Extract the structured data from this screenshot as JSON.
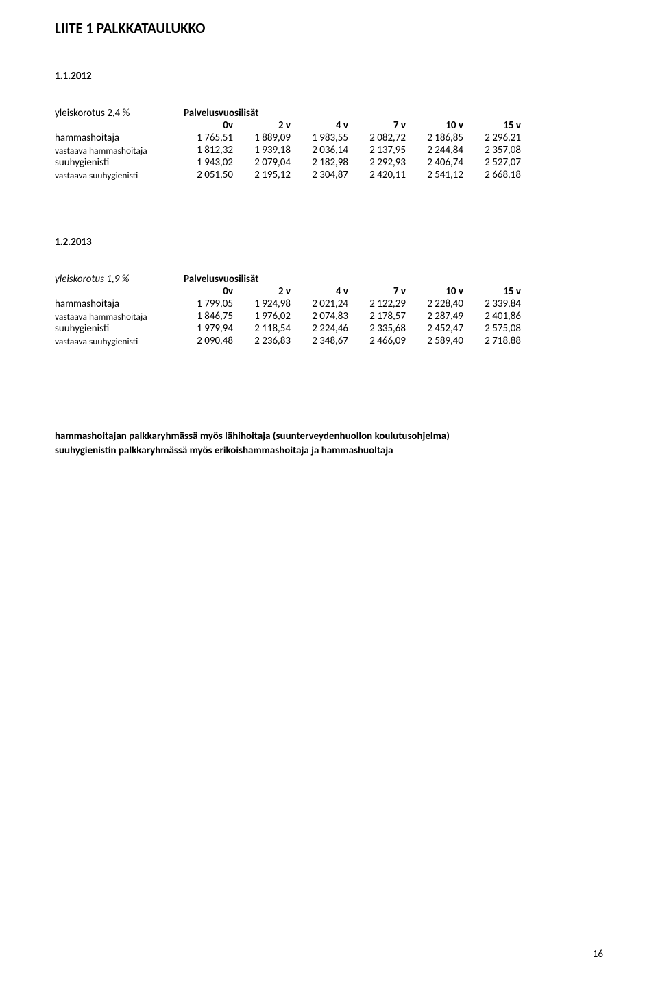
{
  "title": "LIITE 1 PALKKATAULUKKO",
  "page_number": "16",
  "sections": [
    {
      "date": "1.1.2012",
      "raise_label": "yleiskorotus 2,4 %",
      "raise_italic": false,
      "header_label": "Palvelusvuosilisät",
      "columns": [
        "0v",
        "2 v",
        "4 v",
        "7 v",
        "10 v",
        "15 v"
      ],
      "rows": [
        {
          "label": "hammashoitaja",
          "values": [
            "1 765,51",
            "1 889,09",
            "1 983,55",
            "2 082,72",
            "2 186,85",
            "2 296,21"
          ]
        },
        {
          "label": "vastaava hammashoitaja",
          "values": [
            "1 812,32",
            "1 939,18",
            "2 036,14",
            "2 137,95",
            "2 244,84",
            "2 357,08"
          ]
        },
        {
          "label": "suuhygienisti",
          "values": [
            "1 943,02",
            "2 079,04",
            "2 182,98",
            "2 292,93",
            "2 406,74",
            "2 527,07"
          ]
        },
        {
          "label": "vastaava suuhygienisti",
          "values": [
            "2 051,50",
            "2 195,12",
            "2 304,87",
            "2 420,11",
            "2 541,12",
            "2 668,18"
          ]
        }
      ]
    },
    {
      "date": "1.2.2013",
      "raise_label": "yleiskorotus 1,9 %",
      "raise_italic": true,
      "header_label": "Palvelusvuosilisät",
      "columns": [
        "0v",
        "2 v",
        "4 v",
        "7 v",
        "10 v",
        "15 v"
      ],
      "rows": [
        {
          "label": "hammashoitaja",
          "values": [
            "1 799,05",
            "1 924,98",
            "2 021,24",
            "2 122,29",
            "2 228,40",
            "2 339,84"
          ]
        },
        {
          "label": "vastaava hammashoitaja",
          "values": [
            "1 846,75",
            "1 976,02",
            "2 074,83",
            "2 178,57",
            "2 287,49",
            "2 401,86"
          ]
        },
        {
          "label": "suuhygienisti",
          "values": [
            "1 979,94",
            "2 118,54",
            "2 224,46",
            "2 335,68",
            "2 452,47",
            "2 575,08"
          ]
        },
        {
          "label": "vastaava suuhygienisti",
          "values": [
            "2 090,48",
            "2 236,83",
            "2 348,67",
            "2 466,09",
            "2 589,40",
            "2 718,88"
          ]
        }
      ]
    }
  ],
  "footer_lines": [
    "hammashoitajan palkkaryhmässä myös lähihoitaja (suunterveydenhuollon koulutusohjelma)",
    "suuhygienistin palkkaryhmässä myös erikoishammashoitaja ja hammashuoltaja"
  ]
}
